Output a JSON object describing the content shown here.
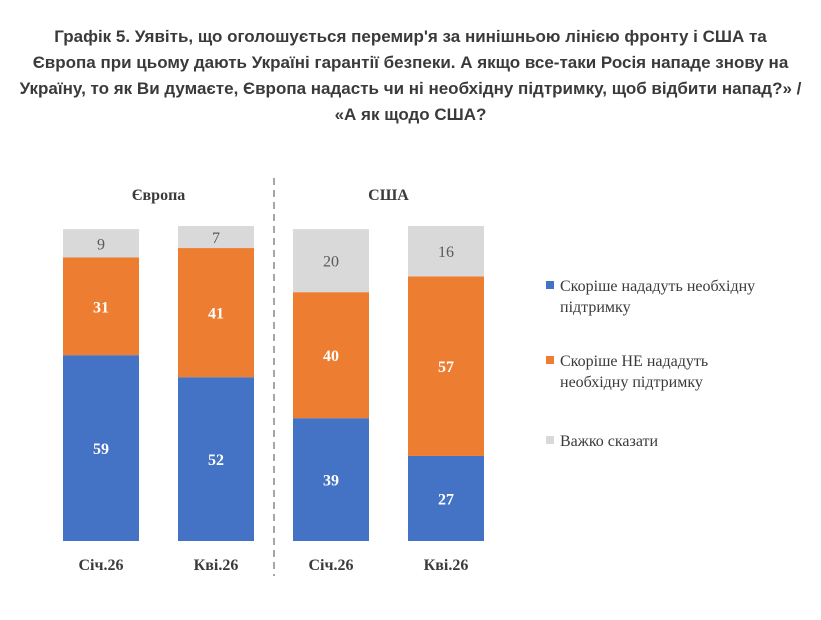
{
  "title_lines": [
    "Графік 5. Уявіть, що оголошується перемир'я за нинішньою лінією фронту і США та",
    "Європа при цьому дають Україні гарантії безпеки. А якщо все-таки Росія нападе знову на",
    "Україну, то як Ви думаєте, Європа надасть чи ні необхідну підтримку, щоб відбити напад?» /",
    "«А як щодо США?"
  ],
  "chart_data": {
    "type": "bar",
    "stacked": true,
    "ylim": [
      0,
      100
    ],
    "groups": [
      "Європа",
      "США"
    ],
    "categories": [
      "Січ.26",
      "Кві.26",
      "Січ.26",
      "Кві.26"
    ],
    "group_of_category": [
      0,
      0,
      1,
      1
    ],
    "series": [
      {
        "name": "Скоріше нададуть необхідну підтримку",
        "color": "#4472c4",
        "label_color": "#ffffff",
        "values": [
          59,
          52,
          39,
          27
        ]
      },
      {
        "name": "Скоріше НЕ нададуть необхідну підтримку",
        "color": "#ed7d31",
        "label_color": "#ffffff",
        "values": [
          31,
          41,
          40,
          57
        ]
      },
      {
        "name": "Важко сказати",
        "color": "#d9d9d9",
        "label_color": "#595959",
        "values": [
          9,
          7,
          20,
          16
        ]
      }
    ],
    "legend_position": "right",
    "grid": false
  }
}
